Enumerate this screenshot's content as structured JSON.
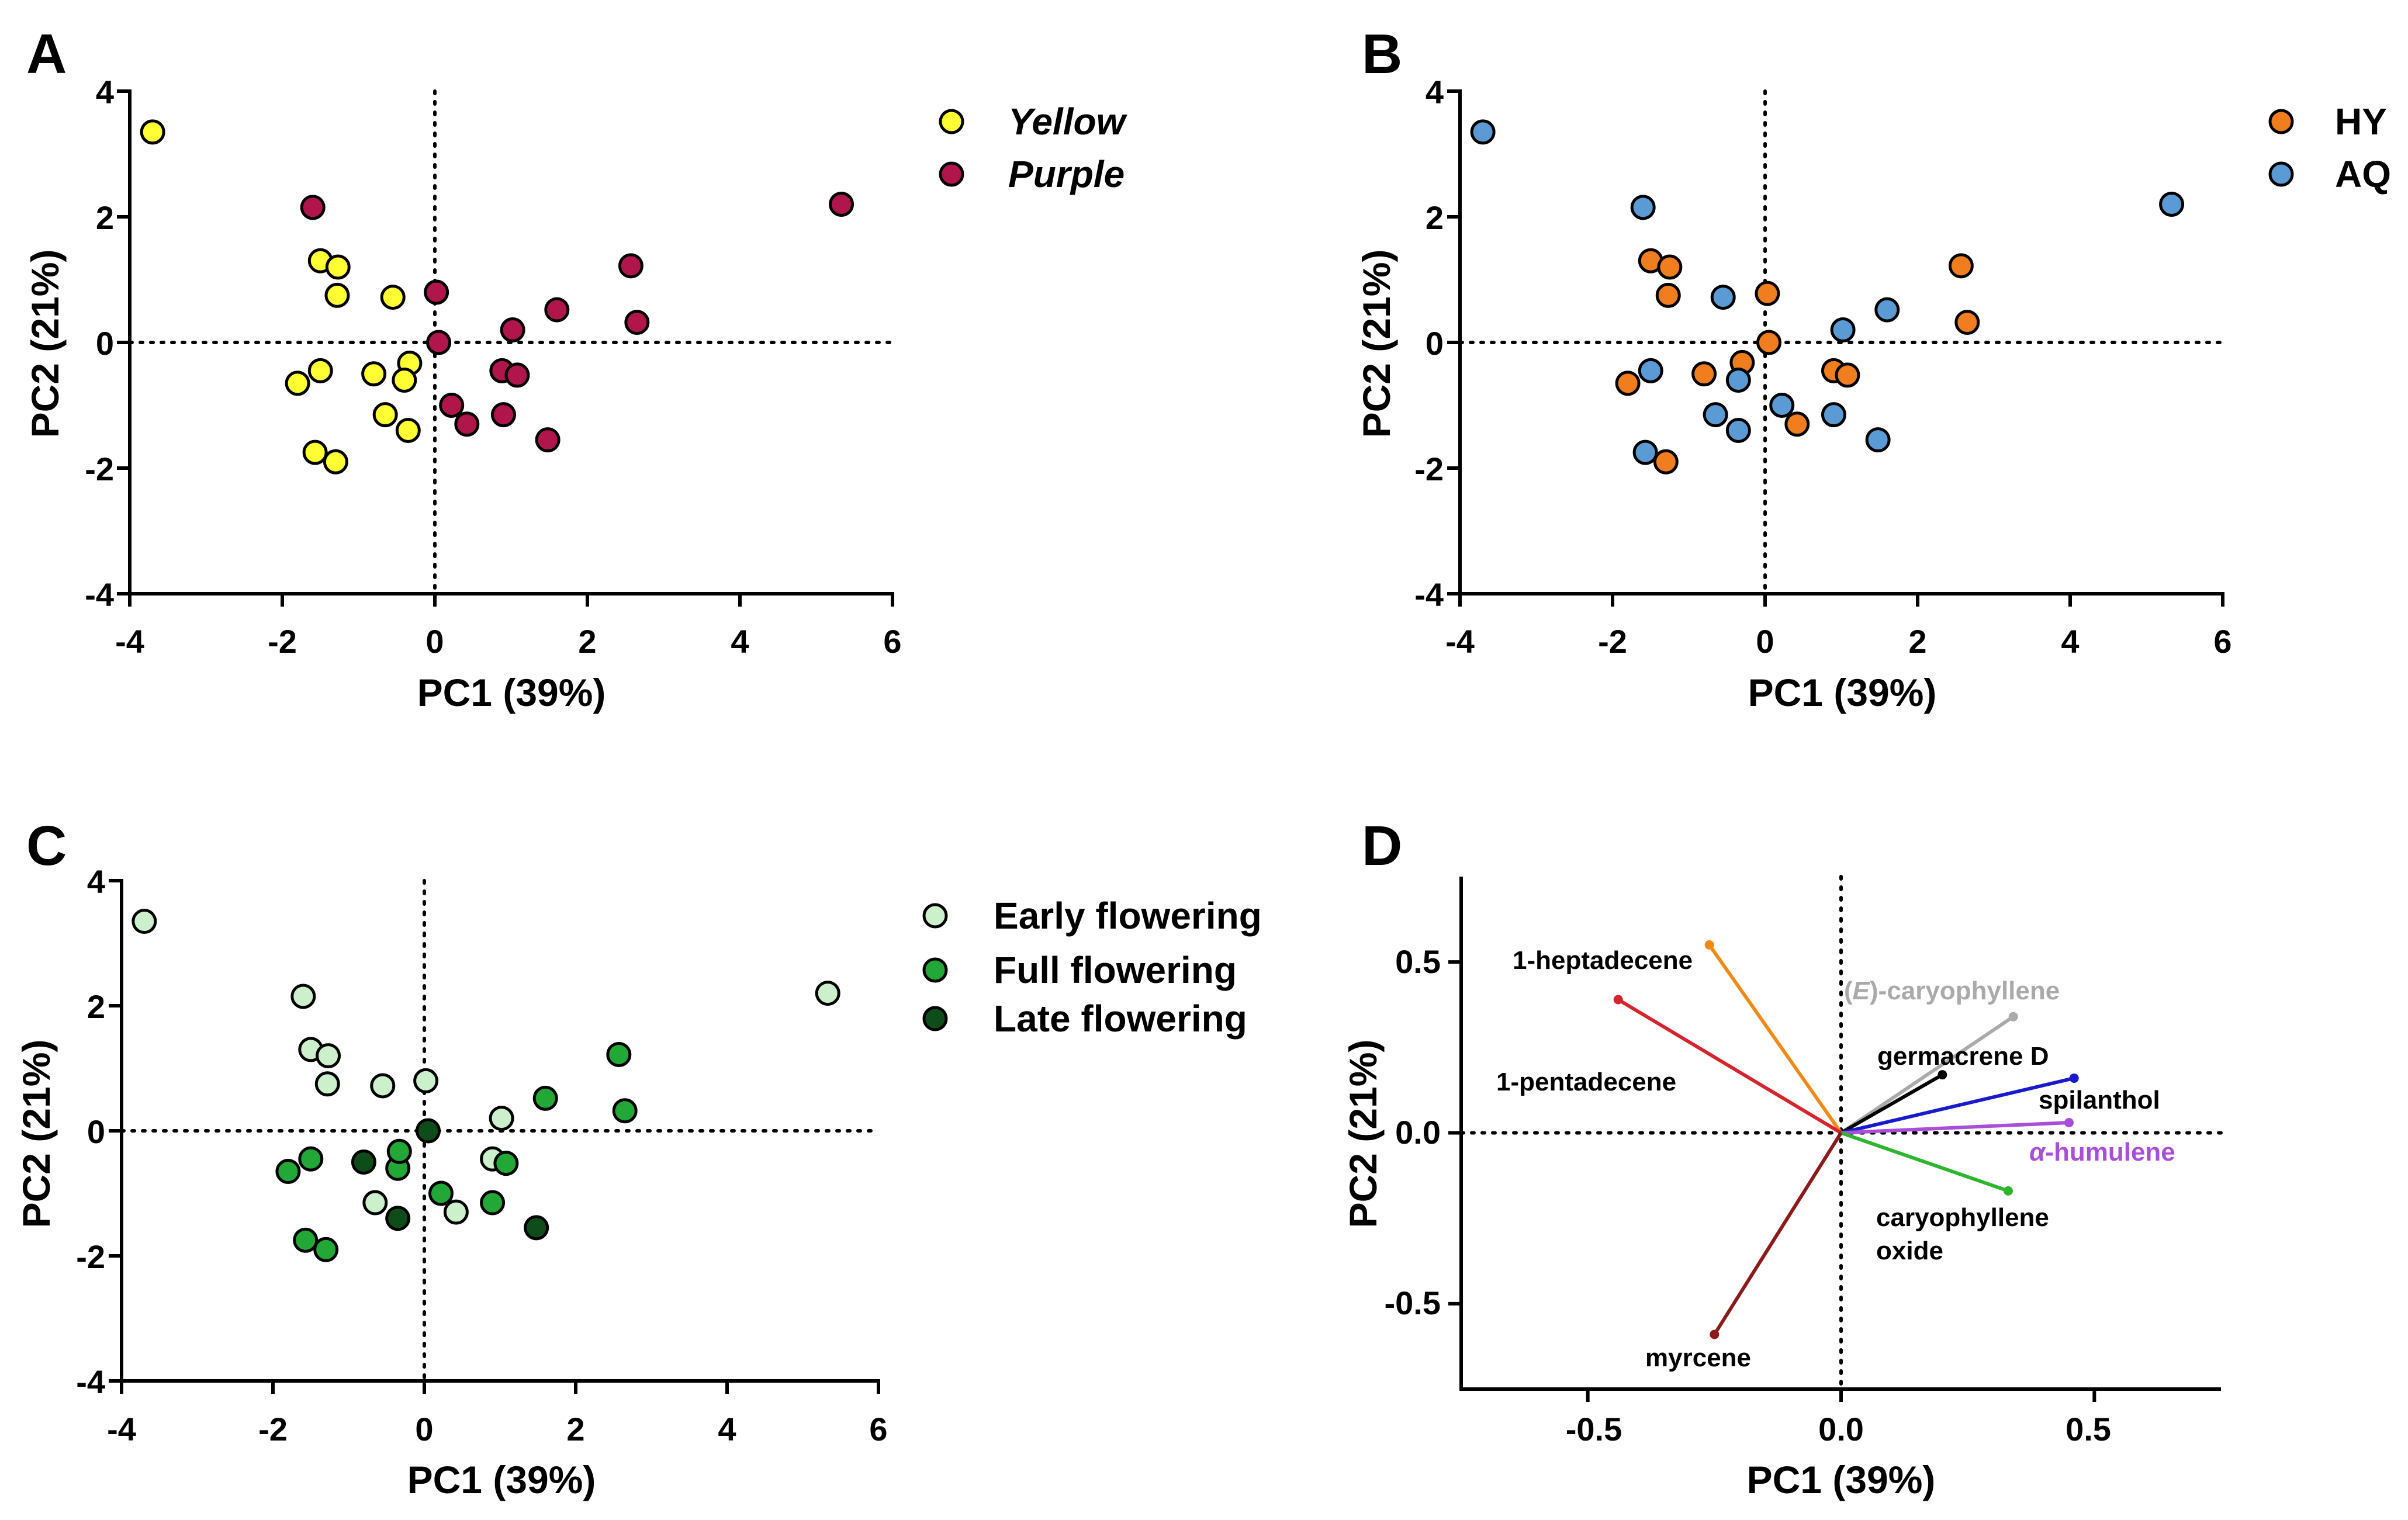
{
  "chart_data": [
    {
      "id": "A",
      "panel_label": "A",
      "type": "scatter",
      "xlabel": "PC1 (39%)",
      "ylabel": "PC2 (21%)",
      "xlim": [
        -4,
        6
      ],
      "ylim": [
        -4,
        4
      ],
      "xticks": [
        "-4",
        "-2",
        "0",
        "2",
        "4",
        "6"
      ],
      "yticks": [
        "4",
        "2",
        "0",
        "-2",
        "-4"
      ],
      "legend_italic": true,
      "series": [
        {
          "name": "Yellow",
          "color": "#ffff33",
          "points": [
            [
              -3.7,
              3.35
            ],
            [
              -1.5,
              1.3
            ],
            [
              -1.27,
              1.2
            ],
            [
              -1.28,
              0.75
            ],
            [
              -0.55,
              0.72
            ],
            [
              -0.33,
              -0.33
            ],
            [
              -0.4,
              -0.6
            ],
            [
              -0.8,
              -0.5
            ],
            [
              -1.5,
              -0.45
            ],
            [
              -1.8,
              -0.65
            ],
            [
              -0.65,
              -1.15
            ],
            [
              -0.35,
              -1.4
            ],
            [
              -1.57,
              -1.75
            ],
            [
              -1.3,
              -1.9
            ]
          ]
        },
        {
          "name": "Purple",
          "color": "#b0164c",
          "points": [
            [
              -1.6,
              2.15
            ],
            [
              0.02,
              0.8
            ],
            [
              0.05,
              0.0
            ],
            [
              1.02,
              0.2
            ],
            [
              1.6,
              0.52
            ],
            [
              2.57,
              1.22
            ],
            [
              2.65,
              0.32
            ],
            [
              5.33,
              2.2
            ],
            [
              0.88,
              -0.45
            ],
            [
              1.08,
              -0.52
            ],
            [
              0.22,
              -1.0
            ],
            [
              0.42,
              -1.3
            ],
            [
              0.9,
              -1.15
            ],
            [
              1.48,
              -1.55
            ]
          ]
        }
      ]
    },
    {
      "id": "B",
      "panel_label": "B",
      "type": "scatter",
      "xlabel": "PC1 (39%)",
      "ylabel": "PC2 (21%)",
      "xlim": [
        -4,
        6
      ],
      "ylim": [
        -4,
        4
      ],
      "xticks": [
        "-4",
        "-2",
        "0",
        "2",
        "4",
        "6"
      ],
      "yticks": [
        "4",
        "2",
        "0",
        "-2",
        "-4"
      ],
      "legend_italic": false,
      "series": [
        {
          "name": "HY",
          "color": "#f07e1e",
          "points": [
            [
              -1.5,
              1.3
            ],
            [
              -1.25,
              1.2
            ],
            [
              -1.27,
              0.75
            ],
            [
              0.03,
              0.78
            ],
            [
              0.05,
              0.0
            ],
            [
              -0.3,
              -0.32
            ],
            [
              -0.8,
              -0.5
            ],
            [
              -1.8,
              -0.65
            ],
            [
              0.9,
              -0.45
            ],
            [
              1.08,
              -0.52
            ],
            [
              0.42,
              -1.3
            ],
            [
              -1.3,
              -1.9
            ],
            [
              2.57,
              1.22
            ],
            [
              2.65,
              0.32
            ]
          ]
        },
        {
          "name": "AQ",
          "color": "#5b9bd5",
          "points": [
            [
              -3.7,
              3.35
            ],
            [
              -1.6,
              2.15
            ],
            [
              -0.55,
              0.72
            ],
            [
              1.02,
              0.2
            ],
            [
              1.6,
              0.52
            ],
            [
              5.33,
              2.2
            ],
            [
              -1.5,
              -0.45
            ],
            [
              -0.35,
              -0.6
            ],
            [
              -0.65,
              -1.15
            ],
            [
              -0.35,
              -1.4
            ],
            [
              0.22,
              -1.0
            ],
            [
              0.9,
              -1.15
            ],
            [
              1.48,
              -1.55
            ],
            [
              -1.57,
              -1.75
            ]
          ]
        }
      ]
    },
    {
      "id": "C",
      "panel_label": "C",
      "type": "scatter",
      "xlabel": "PC1 (39%)",
      "ylabel": "PC2 (21%)",
      "xlim": [
        -4,
        6
      ],
      "ylim": [
        -4,
        4
      ],
      "xticks": [
        "-4",
        "-2",
        "0",
        "2",
        "4",
        "6"
      ],
      "yticks": [
        "4",
        "2",
        "0",
        "-2",
        "-4"
      ],
      "legend_italic": false,
      "series": [
        {
          "name": "Early flowering",
          "color": "#ccf0cc",
          "points": [
            [
              -3.7,
              3.35
            ],
            [
              -1.6,
              2.15
            ],
            [
              -1.5,
              1.3
            ],
            [
              -1.27,
              1.2
            ],
            [
              -1.28,
              0.75
            ],
            [
              -0.55,
              0.72
            ],
            [
              0.02,
              0.8
            ],
            [
              1.02,
              0.2
            ],
            [
              5.33,
              2.2
            ],
            [
              0.9,
              -0.45
            ],
            [
              -0.65,
              -1.15
            ],
            [
              0.42,
              -1.3
            ]
          ]
        },
        {
          "name": "Full flowering",
          "color": "#22a836",
          "points": [
            [
              2.57,
              1.22
            ],
            [
              1.6,
              0.52
            ],
            [
              2.65,
              0.32
            ],
            [
              1.08,
              -0.52
            ],
            [
              -1.5,
              -0.45
            ],
            [
              -1.8,
              -0.65
            ],
            [
              -0.35,
              -0.6
            ],
            [
              -0.33,
              -0.33
            ],
            [
              0.22,
              -1.0
            ],
            [
              0.9,
              -1.15
            ],
            [
              -1.57,
              -1.75
            ],
            [
              -1.3,
              -1.9
            ]
          ]
        },
        {
          "name": "Late flowering",
          "color": "#0e4d1a",
          "points": [
            [
              0.05,
              0.0
            ],
            [
              -0.8,
              -0.5
            ],
            [
              -0.35,
              -1.4
            ],
            [
              1.48,
              -1.55
            ]
          ]
        }
      ]
    },
    {
      "id": "D",
      "panel_label": "D",
      "type": "vector",
      "xlabel": "PC1 (39%)",
      "ylabel": "PC2 (21%)",
      "xlim": [
        -0.75,
        0.75
      ],
      "ylim": [
        -0.75,
        0.75
      ],
      "xticks": [
        "-0.5",
        "0.0",
        "0.5"
      ],
      "yticks": [
        "0.5",
        "0.0",
        "-0.5"
      ],
      "vectors": [
        {
          "name": "1-heptadecene",
          "x": -0.26,
          "y": 0.55,
          "color": "#f08a16"
        },
        {
          "name": "1-pentadecene",
          "x": -0.44,
          "y": 0.39,
          "color": "#d7232b"
        },
        {
          "name_prefix": "(",
          "name_italic": "E",
          "name_suffix": ")-caryophyllene",
          "x": 0.34,
          "y": 0.34,
          "color": "#aaaaaa"
        },
        {
          "name": "germacrene D",
          "x": 0.2,
          "y": 0.17,
          "color": "#000000"
        },
        {
          "name": "spilanthol",
          "x": 0.46,
          "y": 0.16,
          "color": "#1a1acd"
        },
        {
          "name_italic": "α",
          "name_suffix": "-humulene",
          "x": 0.45,
          "y": 0.03,
          "color": "#a94ed8"
        },
        {
          "name": "caryophyllene",
          "name_line2": "oxide",
          "x": 0.33,
          "y": -0.17,
          "color": "#2db52d"
        },
        {
          "name": "myrcene",
          "x": -0.25,
          "y": -0.59,
          "color": "#8b1a1a"
        }
      ]
    }
  ]
}
